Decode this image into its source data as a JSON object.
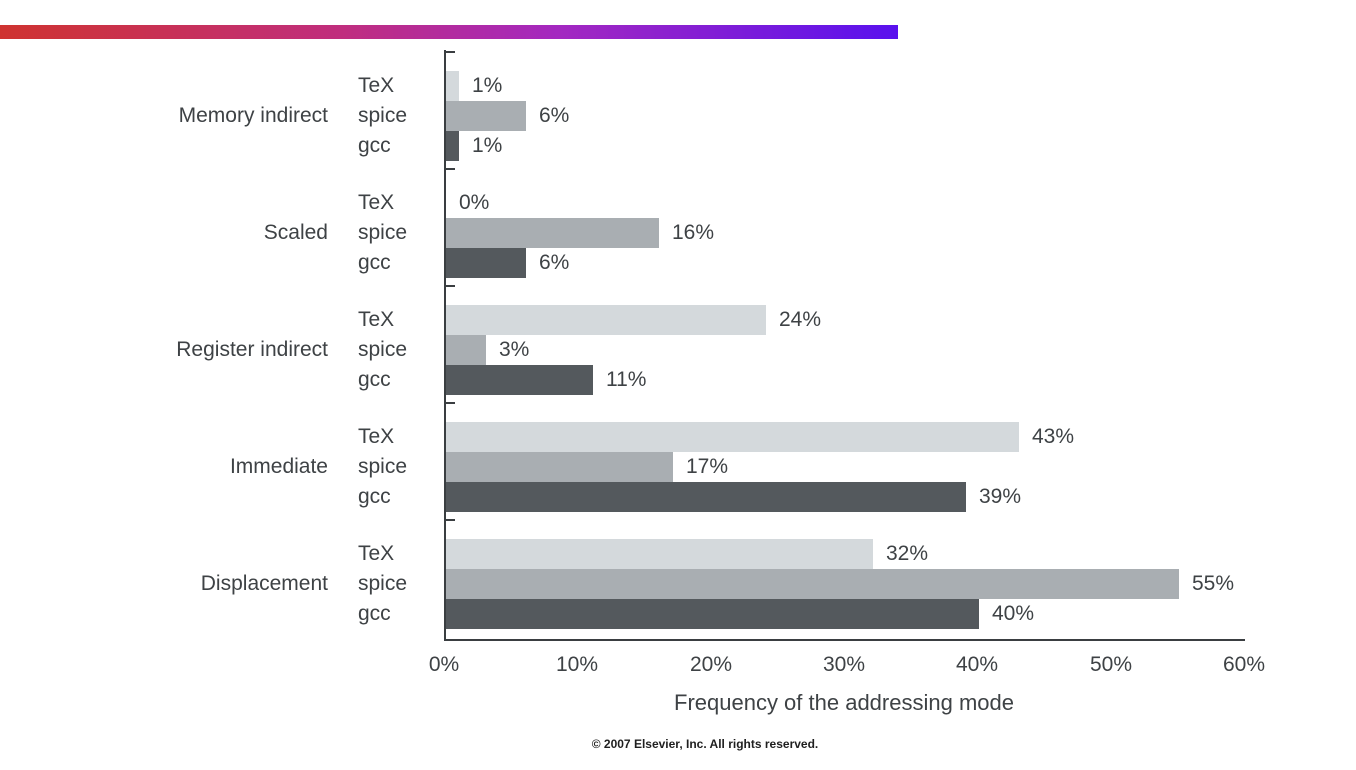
{
  "header": {
    "gradient_rule_colors": [
      "#cf3330",
      "#b12ba4",
      "#5911ee"
    ]
  },
  "chart_data": {
    "type": "bar",
    "orientation": "horizontal",
    "title": "",
    "xlabel": "Frequency of the addressing mode",
    "ylabel": "",
    "xlim": [
      0,
      60
    ],
    "x_ticks": [
      "0%",
      "10%",
      "20%",
      "30%",
      "40%",
      "50%",
      "60%"
    ],
    "grid": false,
    "legend_position": "none",
    "series_names": [
      "TeX",
      "spice",
      "gcc"
    ],
    "series_colors": {
      "TeX": "#d4d9dc",
      "spice": "#a9aeb2",
      "gcc": "#54595d"
    },
    "categories": [
      "Memory indirect",
      "Scaled",
      "Register indirect",
      "Immediate",
      "Displacement"
    ],
    "groups": [
      {
        "category": "Memory indirect",
        "bars": [
          {
            "series": "TeX",
            "value": 1,
            "label": "1%"
          },
          {
            "series": "spice",
            "value": 6,
            "label": "6%"
          },
          {
            "series": "gcc",
            "value": 1,
            "label": "1%"
          }
        ]
      },
      {
        "category": "Scaled",
        "bars": [
          {
            "series": "TeX",
            "value": 0,
            "label": "0%"
          },
          {
            "series": "spice",
            "value": 16,
            "label": "16%"
          },
          {
            "series": "gcc",
            "value": 6,
            "label": "6%"
          }
        ]
      },
      {
        "category": "Register indirect",
        "bars": [
          {
            "series": "TeX",
            "value": 24,
            "label": "24%"
          },
          {
            "series": "spice",
            "value": 3,
            "label": "3%"
          },
          {
            "series": "gcc",
            "value": 11,
            "label": "11%"
          }
        ]
      },
      {
        "category": "Immediate",
        "bars": [
          {
            "series": "TeX",
            "value": 43,
            "label": "43%"
          },
          {
            "series": "spice",
            "value": 17,
            "label": "17%"
          },
          {
            "series": "gcc",
            "value": 39,
            "label": "39%"
          }
        ]
      },
      {
        "category": "Displacement",
        "bars": [
          {
            "series": "TeX",
            "value": 32,
            "label": "32%"
          },
          {
            "series": "spice",
            "value": 55,
            "label": "55%"
          },
          {
            "series": "gcc",
            "value": 40,
            "label": "40%"
          }
        ]
      }
    ]
  },
  "footer": {
    "copyright": "© 2007 Elsevier, Inc. All rights reserved."
  }
}
